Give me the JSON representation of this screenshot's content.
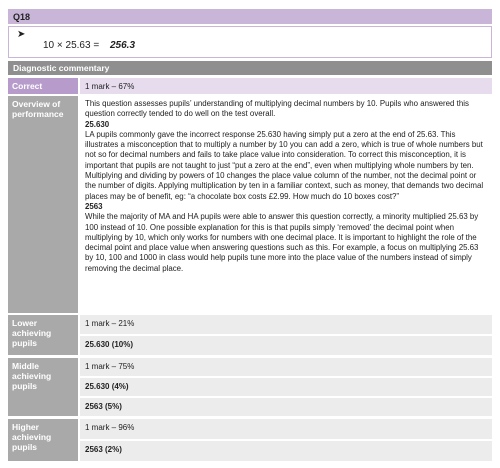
{
  "header": {
    "question": "Q18",
    "expression": "10 × 25.63 =",
    "result": "256.3"
  },
  "commentary": {
    "title": "Diagnostic commentary",
    "correct": {
      "label": "Correct",
      "value": "1 mark – 67%"
    },
    "overview": {
      "label": "Overview of performance",
      "intro": "This question assesses pupils’ understanding of multiplying decimal numbers by 10. Pupils who answered this question correctly tended to do well on the test overall.",
      "sections": [
        {
          "heading": "25.630",
          "text": "LA pupils commonly gave the incorrect response 25.630 having simply put a zero at the end of 25.63. This illustrates a misconception that to multiply a number by 10 you can add a zero, which is true of whole numbers but not so for decimal numbers and fails to take place value into consideration. To correct this misconception, it is important that pupils are not taught to just “put a zero at the end”, even when multiplying whole numbers by ten. Multiplying and dividing by powers of 10 changes the place value column of the number, not the decimal point or the number of digits. Applying multiplication by ten in a familiar context, such as money, that demands two decimal places may be of benefit, eg: “a chocolate box costs £2.99. How much do 10 boxes cost?”"
        },
        {
          "heading": "2563",
          "text": "While the majority of MA and HA pupils were able to answer this question correctly, a minority multiplied 25.63 by 100 instead of 10. One possible explanation for this is that pupils simply ‘removed’ the decimal point when multiplying by 10, which only works for numbers with one decimal place. It is important to highlight the role of the decimal point and place value when answering questions such as this. For example, a focus on multiplying 25.63 by 10, 100 and 1000 in class would help pupils tune more into the place value of the numbers instead of simply removing the decimal place."
        }
      ]
    },
    "groups": [
      {
        "label": "Lower achieving pupils",
        "entries": [
          "1 mark – 21%",
          "25.630 (10%)"
        ]
      },
      {
        "label": "Middle achieving pupils",
        "entries": [
          "1 mark – 75%",
          "25.630 (4%)",
          "2563 (5%)"
        ]
      },
      {
        "label": "Higher achieving pupils",
        "entries": [
          "1 mark – 96%",
          "2563 (2%)"
        ]
      }
    ]
  }
}
